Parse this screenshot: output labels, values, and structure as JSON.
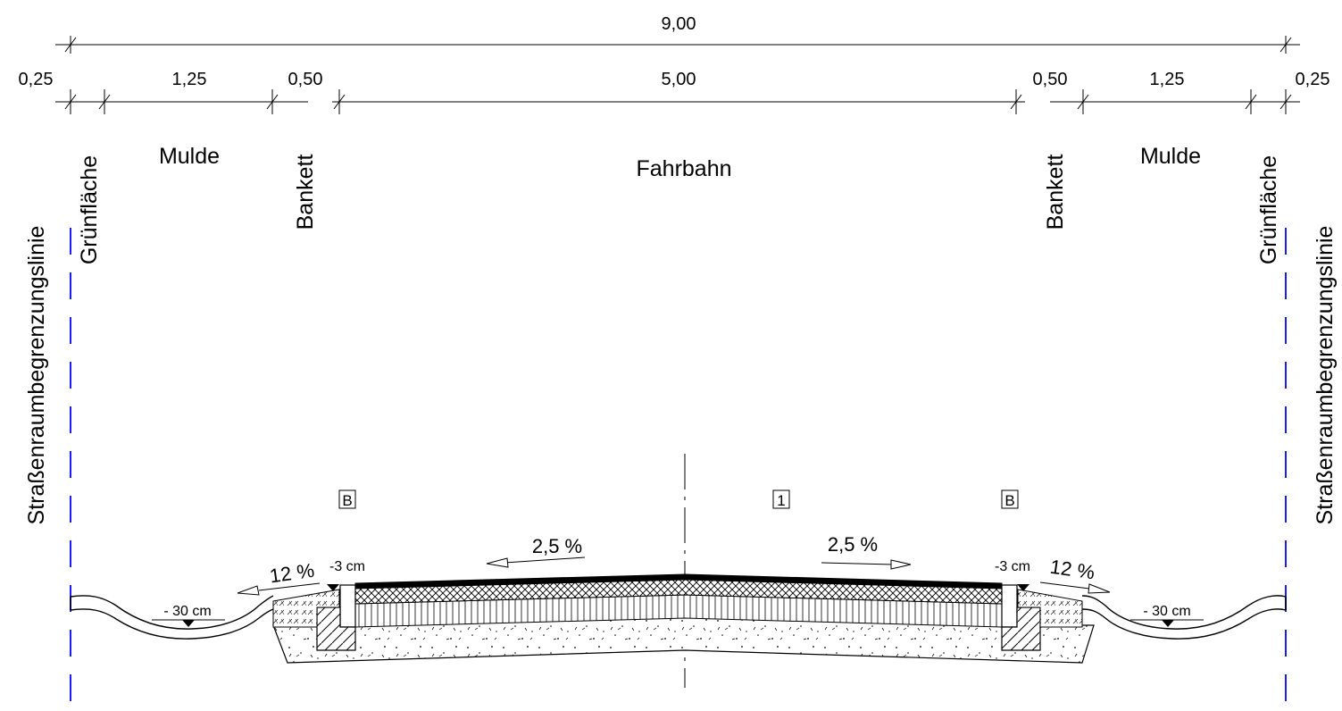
{
  "dimensions": {
    "total": "9,00",
    "left_edge": "0,25",
    "left_mulde": "1,25",
    "left_bankett": "0,50",
    "fahrbahn": "5,00",
    "right_bankett": "0,50",
    "right_mulde": "1,25",
    "right_edge": "0,25"
  },
  "zones": {
    "left_boundary": "Straßenraumbegrenzungslinie",
    "left_green": "Grünfläche",
    "left_mulde": "Mulde",
    "left_bankett": "Bankett",
    "carriageway": "Fahrbahn",
    "right_bankett": "Bankett",
    "right_mulde": "Mulde",
    "right_green": "Grünfläche",
    "right_boundary": "Straßenraumbegrenzungslinie"
  },
  "markers": {
    "left_box": "B",
    "center_box": "1",
    "right_box": "B"
  },
  "slopes": {
    "left_shoulder": "12 %",
    "left_carriageway": "2,5 %",
    "right_carriageway": "2,5 %",
    "right_shoulder": "12 %"
  },
  "levels": {
    "left_edge_drop": "-3 cm",
    "right_edge_drop": "-3 cm",
    "left_ditch_depth": "- 30 cm",
    "right_ditch_depth": "- 30 cm"
  },
  "colors": {
    "boundary_line": "#1a1aff",
    "ink": "#000000"
  }
}
